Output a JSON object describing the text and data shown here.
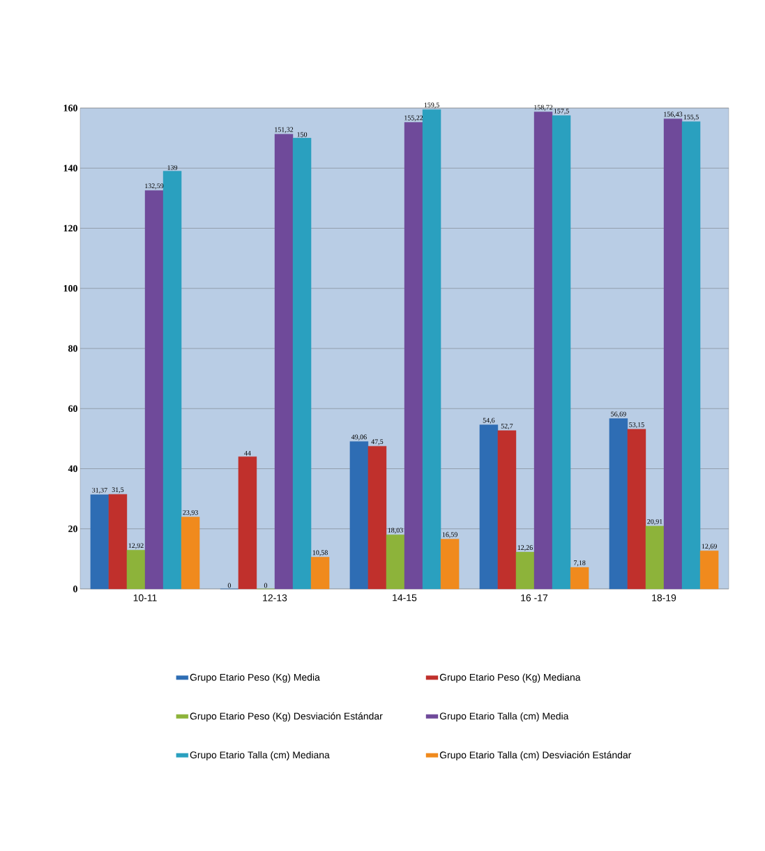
{
  "chart_data": {
    "type": "bar",
    "categories": [
      "10-11",
      "12-13",
      "14-15",
      "16 -17",
      "18-19"
    ],
    "series": [
      {
        "name": "Grupo Etario  Peso (Kg)  Media",
        "color": "#2e6db4",
        "values": [
          31.37,
          0,
          49.06,
          54.6,
          56.69
        ],
        "value_labels": [
          "31,37",
          "0",
          "49,06",
          "54,6",
          "56,69"
        ]
      },
      {
        "name": "Grupo Etario  Peso (Kg)  Mediana",
        "color": "#c0302c",
        "values": [
          31.5,
          44,
          47.5,
          52.7,
          53.15
        ],
        "value_labels": [
          "31,5",
          "44",
          "47,5",
          "52,7",
          "53,15"
        ]
      },
      {
        "name": "Grupo Etario  Peso (Kg)  Desviación Estándar",
        "color": "#8db33a",
        "values": [
          12.92,
          0,
          18.03,
          12.26,
          20.91
        ],
        "value_labels": [
          "12,92",
          "0",
          "18,03",
          "12,26",
          "20,91"
        ]
      },
      {
        "name": "Grupo Etario  Talla (cm)  Media",
        "color": "#6f4a9a",
        "values": [
          132.59,
          151.32,
          155.22,
          158.72,
          156.43
        ],
        "value_labels": [
          "132,59",
          "151,32",
          "155,22",
          "158,72",
          "156,43"
        ]
      },
      {
        "name": "Grupo Etario  Talla (cm)  Mediana",
        "color": "#2aa0bf",
        "values": [
          139,
          150,
          159.5,
          157.5,
          155.5
        ],
        "value_labels": [
          "139",
          "150",
          "159,5",
          "157,5",
          "155,5"
        ]
      },
      {
        "name": "Grupo Etario  Talla (cm)  Desviación Estándar",
        "color": "#f08a1d",
        "values": [
          23.93,
          10.58,
          16.59,
          7.18,
          12.69
        ],
        "value_labels": [
          "23,93",
          "10,58",
          "16,59",
          "7,18",
          "12,69"
        ]
      }
    ],
    "ylim": [
      0,
      160
    ],
    "yticks": [
      0,
      20,
      40,
      60,
      80,
      100,
      120,
      140,
      160
    ],
    "grid": "y",
    "legend": "bottom"
  }
}
